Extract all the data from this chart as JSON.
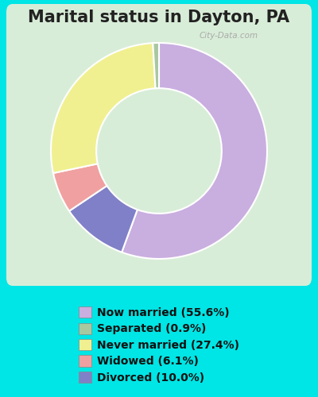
{
  "title": "Marital status in Dayton, PA",
  "categories": [
    "Now married",
    "Separated",
    "Never married",
    "Widowed",
    "Divorced"
  ],
  "values": [
    55.6,
    0.9,
    27.4,
    6.1,
    10.0
  ],
  "colors": [
    "#c9aee0",
    "#a8c8a0",
    "#f0f090",
    "#f0a0a0",
    "#8080c8"
  ],
  "bg_color_outer": "#00e5e5",
  "bg_color_inner": "#d8edd8",
  "legend_labels": [
    "Now married (55.6%)",
    "Separated (0.9%)",
    "Never married (27.4%)",
    "Widowed (6.1%)",
    "Divorced (10.0%)"
  ],
  "title_fontsize": 15,
  "legend_fontsize": 10,
  "watermark": "City-Data.com"
}
